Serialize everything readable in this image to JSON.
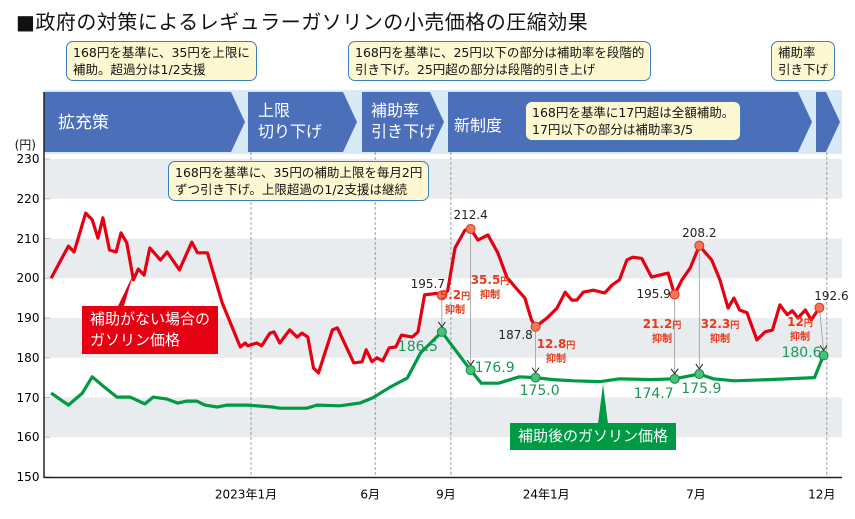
{
  "title": "■政府の対策によるレギュラーガソリンの小売価格の圧縮効果",
  "phases": [
    {
      "label_lines": [
        "拡充策"
      ]
    },
    {
      "label_lines": [
        "上限",
        "切り下げ"
      ]
    },
    {
      "label_lines": [
        "補助率",
        "引き下げ"
      ]
    },
    {
      "label_lines": [
        "新制度"
      ]
    },
    {
      "label_lines": [
        ""
      ]
    }
  ],
  "callouts": [
    {
      "lines": [
        "168円を基準に、35円を上限に",
        "補助。超過分は1/2支援"
      ]
    },
    {
      "lines": [
        "168円を基準に、25円以下の部分は補助率を段階的",
        "引き下げ。25円超の部分は段階的引き上げ"
      ]
    },
    {
      "lines": [
        "補助率",
        "引き下げ"
      ]
    },
    {
      "lines": [
        "168円を基準に17円超は全額補助。",
        "17円以下の部分は補助率3/5"
      ]
    },
    {
      "lines": [
        "168円を基準に、35円の補助上限を毎月2円",
        "ずつ引き下げ。上限超過の1/2支援は継続"
      ]
    }
  ],
  "colors": {
    "band": "#4b6fb8",
    "band_bg": "#d7eaf6",
    "red": "#e60012",
    "green": "#009944",
    "grid_band": "#e9ecef",
    "callout_bg": "#fdf8d2",
    "callout_border": "#3a7fc0"
  },
  "chart_data": {
    "type": "line",
    "title": "■政府の対策によるレギュラーガソリンの小売価格の圧縮効果",
    "ylabel": "(円)",
    "ylim": [
      150,
      230
    ],
    "yticks": [
      150,
      160,
      170,
      180,
      190,
      200,
      210,
      220,
      230
    ],
    "grid": "alternating horizontal bands",
    "xticks": [
      {
        "date": "2023-01-01",
        "label": "2023年1月"
      },
      {
        "date": "2023-06-01",
        "label": "6月"
      },
      {
        "date": "2023-09-01",
        "label": "9月"
      },
      {
        "date": "2024-01-01",
        "label": "24年1月"
      },
      {
        "date": "2024-07-01",
        "label": "7月"
      },
      {
        "date": "2024-12-01",
        "label": "12月"
      }
    ],
    "phase_boundaries": [
      "2023-01-01",
      "2023-06-01",
      "2023-09-01",
      "2024-12-01"
    ],
    "series": [
      {
        "name": "補助がない場合のガソリン価格",
        "name_lines": [
          "補助がない場合の",
          "ガソリン価格"
        ],
        "color": "#e60012",
        "points": [
          [
            "2022-05-03",
            200.0
          ],
          [
            "2022-05-24",
            208.1
          ],
          [
            "2022-05-31",
            206.6
          ],
          [
            "2022-06-14",
            216.4
          ],
          [
            "2022-06-22",
            214.7
          ],
          [
            "2022-06-29",
            210.1
          ],
          [
            "2022-07-05",
            215.2
          ],
          [
            "2022-07-13",
            207.1
          ],
          [
            "2022-07-21",
            206.6
          ],
          [
            "2022-07-27",
            211.4
          ],
          [
            "2022-08-03",
            208.9
          ],
          [
            "2022-08-11",
            199.6
          ],
          [
            "2022-08-17",
            202.3
          ],
          [
            "2022-08-24",
            200.8
          ],
          [
            "2022-08-31",
            207.6
          ],
          [
            "2022-09-13",
            204.6
          ],
          [
            "2022-09-21",
            206.6
          ],
          [
            "2022-10-06",
            202.1
          ],
          [
            "2022-10-21",
            209.1
          ],
          [
            "2022-10-28",
            206.4
          ],
          [
            "2022-11-09",
            206.4
          ],
          [
            "2022-11-27",
            193.8
          ],
          [
            "2022-12-19",
            182.7
          ],
          [
            "2022-12-25",
            183.7
          ],
          [
            "2022-12-28",
            183.0
          ],
          [
            "2023-01-08",
            183.7
          ],
          [
            "2023-01-14",
            183.0
          ],
          [
            "2023-01-24",
            186.2
          ],
          [
            "2023-01-29",
            186.5
          ],
          [
            "2023-02-05",
            183.7
          ],
          [
            "2023-02-17",
            187.0
          ],
          [
            "2023-02-26",
            185.2
          ],
          [
            "2023-03-04",
            186.2
          ],
          [
            "2023-03-11",
            185.2
          ],
          [
            "2023-03-18",
            177.4
          ],
          [
            "2023-03-24",
            176.2
          ],
          [
            "2023-04-10",
            187.0
          ],
          [
            "2023-04-16",
            187.5
          ],
          [
            "2023-05-06",
            178.7
          ],
          [
            "2023-05-16",
            179.0
          ],
          [
            "2023-05-21",
            182.0
          ],
          [
            "2023-05-28",
            179.0
          ],
          [
            "2023-06-03",
            180.0
          ],
          [
            "2023-06-10",
            179.2
          ],
          [
            "2023-06-18",
            182.5
          ],
          [
            "2023-06-26",
            182.7
          ],
          [
            "2023-07-03",
            185.7
          ],
          [
            "2023-07-16",
            185.2
          ],
          [
            "2023-07-23",
            186.5
          ],
          [
            "2023-07-31",
            195.8
          ],
          [
            "2023-08-15",
            196.2
          ],
          [
            "2023-08-21",
            195.7
          ],
          [
            "2023-08-28",
            196.8
          ],
          [
            "2023-09-06",
            207.6
          ],
          [
            "2023-09-18",
            212.1
          ],
          [
            "2023-09-25",
            212.4
          ],
          [
            "2023-10-04",
            209.6
          ],
          [
            "2023-10-16",
            210.9
          ],
          [
            "2023-10-28",
            206.4
          ],
          [
            "2023-11-08",
            200.3
          ],
          [
            "2023-11-18",
            197.8
          ],
          [
            "2023-11-30",
            195.0
          ],
          [
            "2023-12-08",
            189.5
          ],
          [
            "2023-12-13",
            187.8
          ],
          [
            "2023-12-27",
            190.0
          ],
          [
            "2024-01-08",
            192.5
          ],
          [
            "2024-01-18",
            196.5
          ],
          [
            "2024-01-26",
            194.5
          ],
          [
            "2024-02-01",
            194.5
          ],
          [
            "2024-02-09",
            196.5
          ],
          [
            "2024-02-21",
            197.0
          ],
          [
            "2024-03-06",
            196.3
          ],
          [
            "2024-03-15",
            198.3
          ],
          [
            "2024-03-24",
            199.6
          ],
          [
            "2024-04-02",
            204.6
          ],
          [
            "2024-04-09",
            205.3
          ],
          [
            "2024-04-20",
            205.0
          ],
          [
            "2024-05-02",
            200.3
          ],
          [
            "2024-05-22",
            201.3
          ],
          [
            "2024-05-30",
            195.9
          ],
          [
            "2024-06-08",
            199.6
          ],
          [
            "2024-06-18",
            202.6
          ],
          [
            "2024-06-29",
            208.2
          ],
          [
            "2024-07-14",
            204.6
          ],
          [
            "2024-07-24",
            199.6
          ],
          [
            "2024-08-03",
            192.5
          ],
          [
            "2024-08-10",
            195.0
          ],
          [
            "2024-08-17",
            192.0
          ],
          [
            "2024-08-26",
            191.3
          ],
          [
            "2024-09-07",
            184.5
          ],
          [
            "2024-09-17",
            186.5
          ],
          [
            "2024-09-26",
            187.0
          ],
          [
            "2024-10-05",
            193.3
          ],
          [
            "2024-10-14",
            190.8
          ],
          [
            "2024-10-20",
            191.8
          ],
          [
            "2024-10-27",
            190.0
          ],
          [
            "2024-11-05",
            192.0
          ],
          [
            "2024-11-12",
            189.5
          ],
          [
            "2024-11-22",
            192.6
          ]
        ]
      },
      {
        "name": "補助後のガソリン価格",
        "name_lines": [
          "補助後のガソリン価格"
        ],
        "color": "#009944",
        "points": [
          [
            "2022-05-03",
            171.1
          ],
          [
            "2022-05-24",
            168.1
          ],
          [
            "2022-06-10",
            171.1
          ],
          [
            "2022-06-22",
            175.2
          ],
          [
            "2022-07-04",
            173.1
          ],
          [
            "2022-07-22",
            170.1
          ],
          [
            "2022-08-07",
            170.1
          ],
          [
            "2022-08-25",
            168.4
          ],
          [
            "2022-09-04",
            170.1
          ],
          [
            "2022-09-21",
            169.6
          ],
          [
            "2022-10-04",
            168.6
          ],
          [
            "2022-10-15",
            169.1
          ],
          [
            "2022-10-27",
            169.1
          ],
          [
            "2022-11-06",
            168.1
          ],
          [
            "2022-11-21",
            167.6
          ],
          [
            "2022-12-03",
            168.1
          ],
          [
            "2022-12-27",
            168.1
          ],
          [
            "2023-01-27",
            167.6
          ],
          [
            "2023-02-05",
            167.3
          ],
          [
            "2023-03-10",
            167.3
          ],
          [
            "2023-03-22",
            168.1
          ],
          [
            "2023-04-19",
            167.9
          ],
          [
            "2023-05-13",
            168.6
          ],
          [
            "2023-05-29",
            169.9
          ],
          [
            "2023-06-19",
            172.6
          ],
          [
            "2023-07-10",
            174.9
          ],
          [
            "2023-07-26",
            181.2
          ],
          [
            "2023-08-21",
            186.5
          ],
          [
            "2023-09-04",
            182.6
          ],
          [
            "2023-09-25",
            176.9
          ],
          [
            "2023-10-08",
            173.6
          ],
          [
            "2023-10-29",
            173.6
          ],
          [
            "2023-11-23",
            175.2
          ],
          [
            "2023-12-13",
            175.0
          ],
          [
            "2024-01-03",
            174.5
          ],
          [
            "2024-01-28",
            174.2
          ],
          [
            "2024-03-01",
            174.0
          ],
          [
            "2024-03-24",
            174.7
          ],
          [
            "2024-05-01",
            174.5
          ],
          [
            "2024-05-30",
            174.7
          ],
          [
            "2024-06-29",
            175.9
          ],
          [
            "2024-07-16",
            174.7
          ],
          [
            "2024-08-11",
            174.2
          ],
          [
            "2024-09-22",
            174.5
          ],
          [
            "2024-11-16",
            175.0
          ],
          [
            "2024-11-27",
            180.6
          ]
        ]
      }
    ],
    "annotations": [
      {
        "date_red": "2023-08-21",
        "red": "195.7",
        "date_green": "2023-08-21",
        "green": "186.5",
        "diff": "9.2",
        "unit": "円",
        "word": "抑制"
      },
      {
        "date_red": "2023-09-25",
        "red": "212.4",
        "date_green": "2023-09-25",
        "green": "176.9",
        "diff": "35.5",
        "unit": "円",
        "word": "抑制"
      },
      {
        "date_red": "2023-12-13",
        "red": "187.8",
        "date_green": "2023-12-13",
        "green": "175.0",
        "diff": "12.8",
        "unit": "円",
        "word": "抑制"
      },
      {
        "date_red": "2024-05-30",
        "red": "195.9",
        "date_green": "2024-05-30",
        "green": "174.7",
        "diff": "21.2",
        "unit": "円",
        "word": "抑制"
      },
      {
        "date_red": "2024-06-29",
        "red": "208.2",
        "date_green": "2024-06-29",
        "green": "175.9",
        "diff": "32.3",
        "unit": "円",
        "word": "抑制"
      },
      {
        "date_red": "2024-11-22",
        "red": "192.6",
        "date_green": "2024-11-27",
        "green": "180.6",
        "diff": "12",
        "unit": "円",
        "word": "抑制"
      }
    ]
  }
}
